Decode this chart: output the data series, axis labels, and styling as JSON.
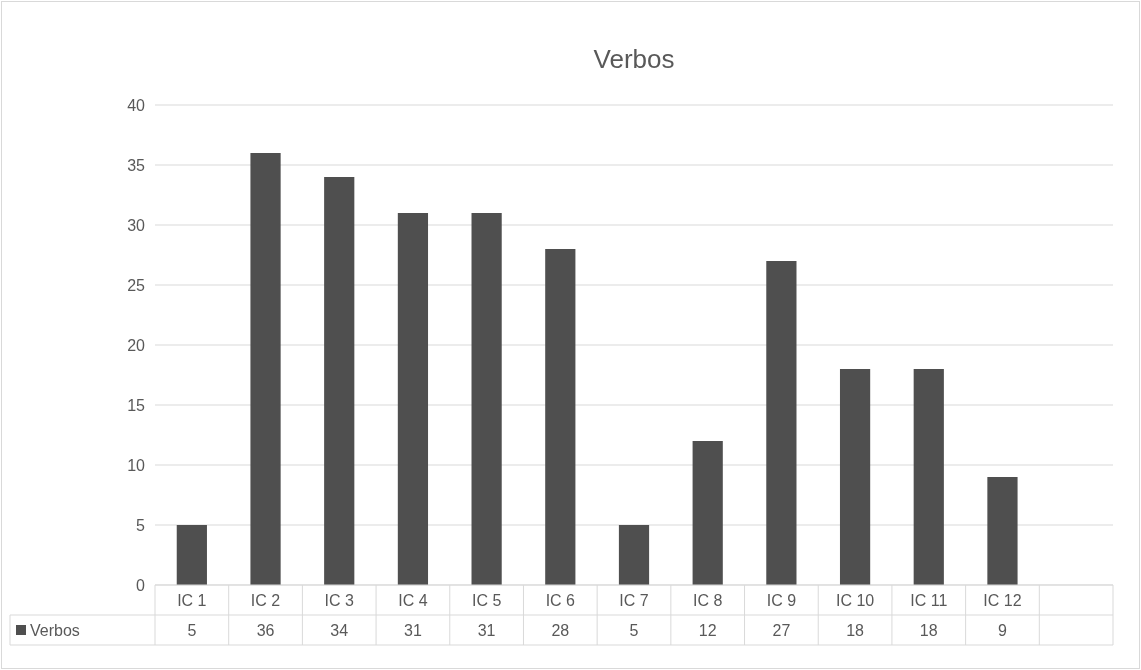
{
  "chart_data": {
    "type": "bar",
    "title": "Verbos",
    "categories": [
      "IC 1",
      "IC 2",
      "IC 3",
      "IC 4",
      "IC 5",
      "IC 6",
      "IC 7",
      "IC 8",
      "IC 9",
      "IC 10",
      "IC 11",
      "IC 12",
      null
    ],
    "series": [
      {
        "name": "Verbos",
        "color": "#4f4f4f",
        "values": [
          5,
          36,
          34,
          31,
          31,
          28,
          5,
          12,
          27,
          18,
          18,
          9,
          null
        ]
      }
    ],
    "ylim": [
      0,
      40
    ],
    "yticks": [
      0,
      5,
      10,
      15,
      20,
      25,
      30,
      35,
      40
    ],
    "grid": "y",
    "legend": "bottom",
    "data_labels": true
  }
}
